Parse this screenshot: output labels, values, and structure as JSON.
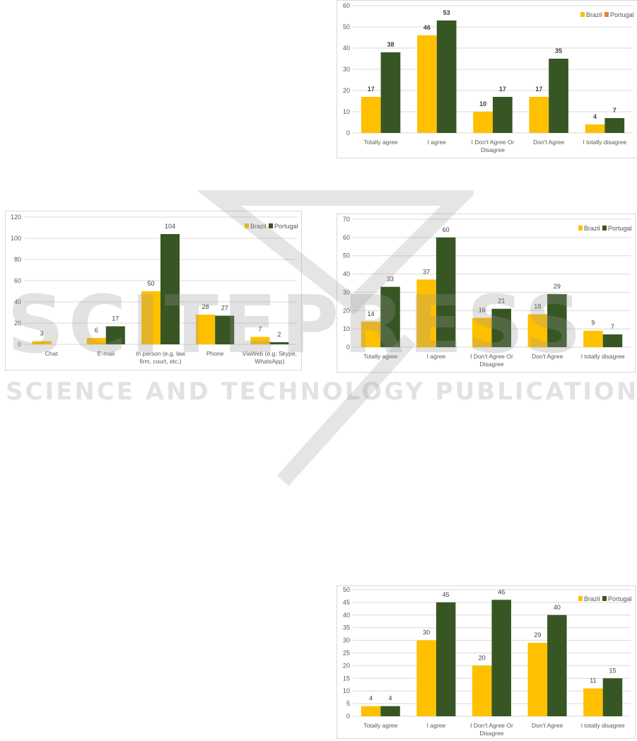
{
  "colors": {
    "brazil": "#FFC000",
    "portugal": "#375623",
    "portugal_legend_alt": "#ED7D31",
    "grid": "#d9d9d9",
    "text": "#595959"
  },
  "watermark": {
    "big": "SCITEPRESS",
    "small": "SCIENCE AND TECHNOLOGY PUBLICATIONS"
  },
  "chart_data": [
    {
      "id": "a",
      "type": "bar",
      "title": "",
      "categories": [
        "Totally agree",
        "I agree",
        "I Don't Agree Or Disagree",
        "Don't Agree",
        "I totally disagree"
      ],
      "series": [
        {
          "name": "Brazil",
          "values": [
            17,
            46,
            10,
            17,
            4
          ]
        },
        {
          "name": "Portugal",
          "values": [
            38,
            53,
            17,
            35,
            7
          ]
        }
      ],
      "ylim": [
        0,
        60
      ],
      "yticks": [
        0,
        10,
        20,
        30,
        40,
        50,
        60
      ],
      "grid": true,
      "legend": "top-right",
      "legend_portugal_color": "orange",
      "bold_labels": true
    },
    {
      "id": "b",
      "type": "bar",
      "title": "",
      "categories": [
        "Chat",
        "E-mail",
        "In person (e.g. law firm, court, etc.)",
        "Phone",
        "ViaWeb (e.g: Skype, WhatsApp)"
      ],
      "series": [
        {
          "name": "Brazil",
          "values": [
            3,
            6,
            50,
            28,
            7
          ]
        },
        {
          "name": "Portugal",
          "values": [
            null,
            17,
            104,
            27,
            2
          ]
        }
      ],
      "ylim": [
        0,
        120
      ],
      "yticks": [
        0,
        20,
        40,
        60,
        80,
        100,
        120
      ],
      "grid": true,
      "legend": "top-right"
    },
    {
      "id": "c",
      "type": "bar",
      "title": "",
      "categories": [
        "Totally agree",
        "I agree",
        "I Don't Agree Or Disagree",
        "Don't Agree",
        "I totally disagree"
      ],
      "series": [
        {
          "name": "Brazil",
          "values": [
            14,
            37,
            16,
            18,
            9
          ]
        },
        {
          "name": "Portugal",
          "values": [
            33,
            60,
            21,
            29,
            7
          ]
        }
      ],
      "ylim": [
        0,
        70
      ],
      "yticks": [
        0,
        10,
        20,
        30,
        40,
        50,
        60,
        70
      ],
      "grid": true,
      "legend": "top-right"
    },
    {
      "id": "d",
      "type": "bar",
      "title": "",
      "categories": [
        "Totally agree",
        "I agree",
        "I Don't Agree Or Disagree",
        "Don't Agree",
        "I totally disagree"
      ],
      "series": [
        {
          "name": "Brazil",
          "values": [
            4,
            30,
            20,
            29,
            11
          ]
        },
        {
          "name": "Portugal",
          "values": [
            4,
            45,
            46,
            40,
            15
          ]
        }
      ],
      "ylim": [
        0,
        50
      ],
      "yticks": [
        0,
        5,
        10,
        15,
        20,
        25,
        30,
        35,
        40,
        45,
        50
      ],
      "grid": true,
      "legend": "top-right"
    }
  ]
}
